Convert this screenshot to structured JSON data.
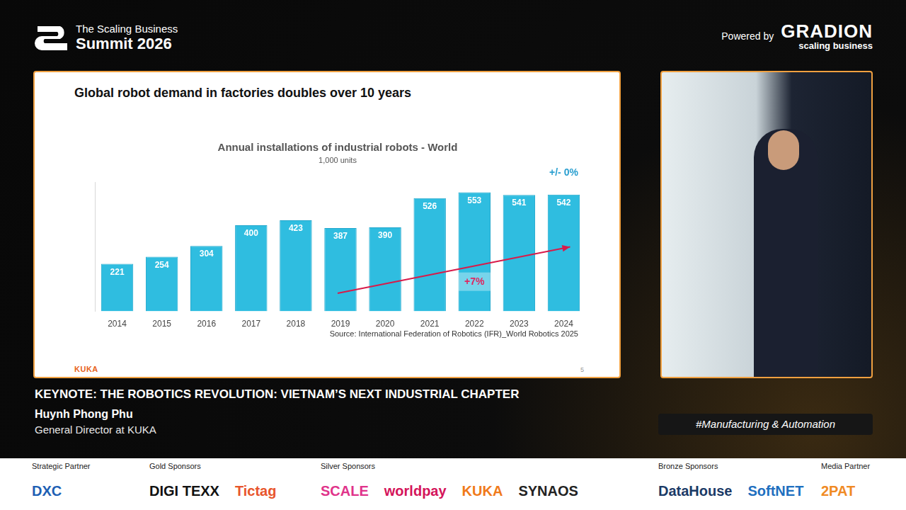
{
  "chart_data": {
    "type": "bar",
    "title": "Annual installations of industrial robots - World",
    "subtitle": "1,000 units",
    "categories": [
      "2014",
      "2015",
      "2016",
      "2017",
      "2018",
      "2019",
      "2020",
      "2021",
      "2022",
      "2023",
      "2024"
    ],
    "values": [
      221,
      254,
      304,
      400,
      423,
      387,
      390,
      526,
      553,
      541,
      542
    ],
    "color": "#2fbde0",
    "ylim": [
      0,
      600
    ],
    "yticks": [],
    "grid": false,
    "data_labels": true,
    "tick_labels": "x",
    "annotations": [
      {
        "text": "+/- 0%",
        "category": "2024"
      }
    ],
    "trend": {
      "from": "2019",
      "to": "2024",
      "text": "+7%",
      "category": "2022"
    }
  },
  "slide": {
    "title": "Global robot demand in factories doubles over 10 years",
    "source": "Source: International Federation of Robotics (IFR)_World Robotics 2025",
    "logo": "KUKA",
    "page": "5"
  },
  "header": {
    "event_line1": "The Scaling Business",
    "event_line2": "Summit 2026",
    "powered_by": "Powered by",
    "brand": "GRADION",
    "brand_tagline": "scaling business"
  },
  "session": {
    "title": "KEYNOTE: THE ROBOTICS REVOLUTION: VIETNAM’S NEXT INDUSTRIAL CHAPTER",
    "speaker": "Huynh Phong Phu",
    "role": "General Director at KUKA",
    "tag": "#Manufacturing & Automation"
  },
  "sponsors": [
    {
      "label": "Strategic Partner",
      "names": [
        "DXC"
      ]
    },
    {
      "label": "Gold Sponsors",
      "names": [
        "DIGI TEXX",
        "Tictag"
      ]
    },
    {
      "label": "Silver Sponsors",
      "names": [
        "SCALE",
        "worldpay",
        "KUKA",
        "SYNAOS"
      ]
    },
    {
      "label": "Bronze Sponsors",
      "names": [
        "DataHouse",
        "SoftNET"
      ]
    },
    {
      "label": "Media Partner",
      "names": [
        "2PAT"
      ]
    }
  ]
}
